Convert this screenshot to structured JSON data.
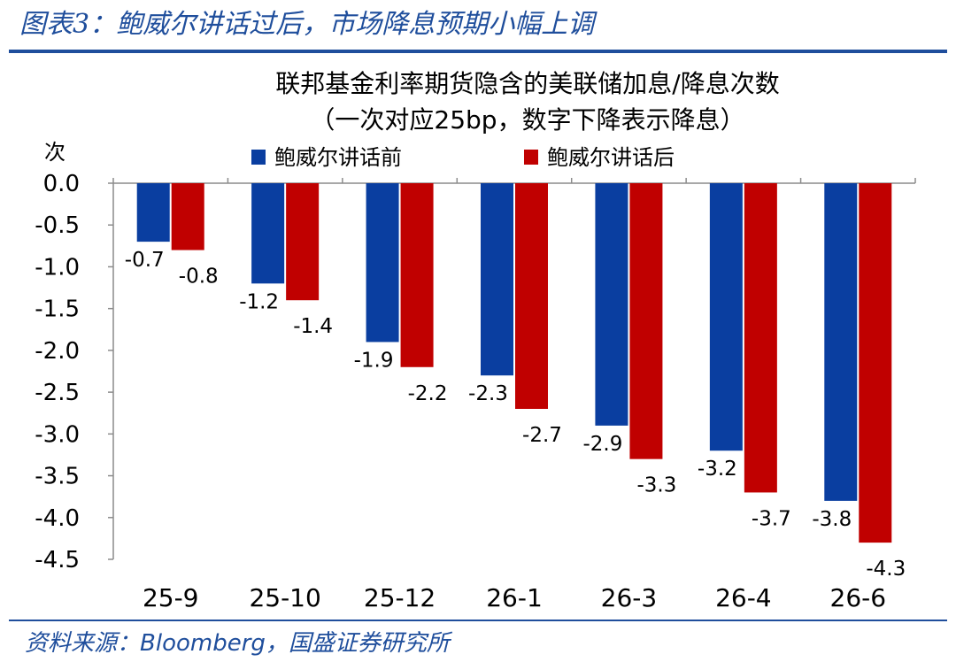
{
  "figure": {
    "title": "图表3：鲍威尔讲话过后，市场降息预期小幅上调",
    "source_prefix": "资料来源：",
    "source_brand": "Bloomberg",
    "source_suffix": "，国盛证券研究所",
    "accent_color": "#1f4e9c"
  },
  "chart_data": {
    "type": "bar",
    "title": "联邦基金利率期货隐含的美联储加息/降息次数",
    "subtitle": "（一次对应25bp，数字下降表示降息）",
    "ylabel": "次",
    "xlabel": "",
    "categories": [
      "25-9",
      "25-10",
      "25-12",
      "26-1",
      "26-3",
      "26-4",
      "26-6"
    ],
    "series": [
      {
        "name": "鲍威尔讲话前",
        "color": "#0a3ea0",
        "values": [
          -0.7,
          -1.2,
          -1.9,
          -2.3,
          -2.9,
          -3.2,
          -3.8
        ]
      },
      {
        "name": "鲍威尔讲话后",
        "color": "#c00000",
        "values": [
          -0.8,
          -1.4,
          -2.2,
          -2.7,
          -3.3,
          -3.7,
          -4.3
        ]
      }
    ],
    "ylim": [
      -4.5,
      0
    ],
    "yticks": [
      "0.0",
      "-0.5",
      "-1.0",
      "-1.5",
      "-2.0",
      "-2.5",
      "-3.0",
      "-3.5",
      "-4.0",
      "-4.5"
    ],
    "data_labels": [
      [
        "-0.7",
        "-1.2",
        "-1.9",
        "-2.3",
        "-2.9",
        "-3.2",
        "-3.8"
      ],
      [
        "-0.8",
        "-1.4",
        "-2.2",
        "-2.7",
        "-3.3",
        "-3.7",
        "-4.3"
      ]
    ],
    "grid": false,
    "legend_position": "top"
  }
}
